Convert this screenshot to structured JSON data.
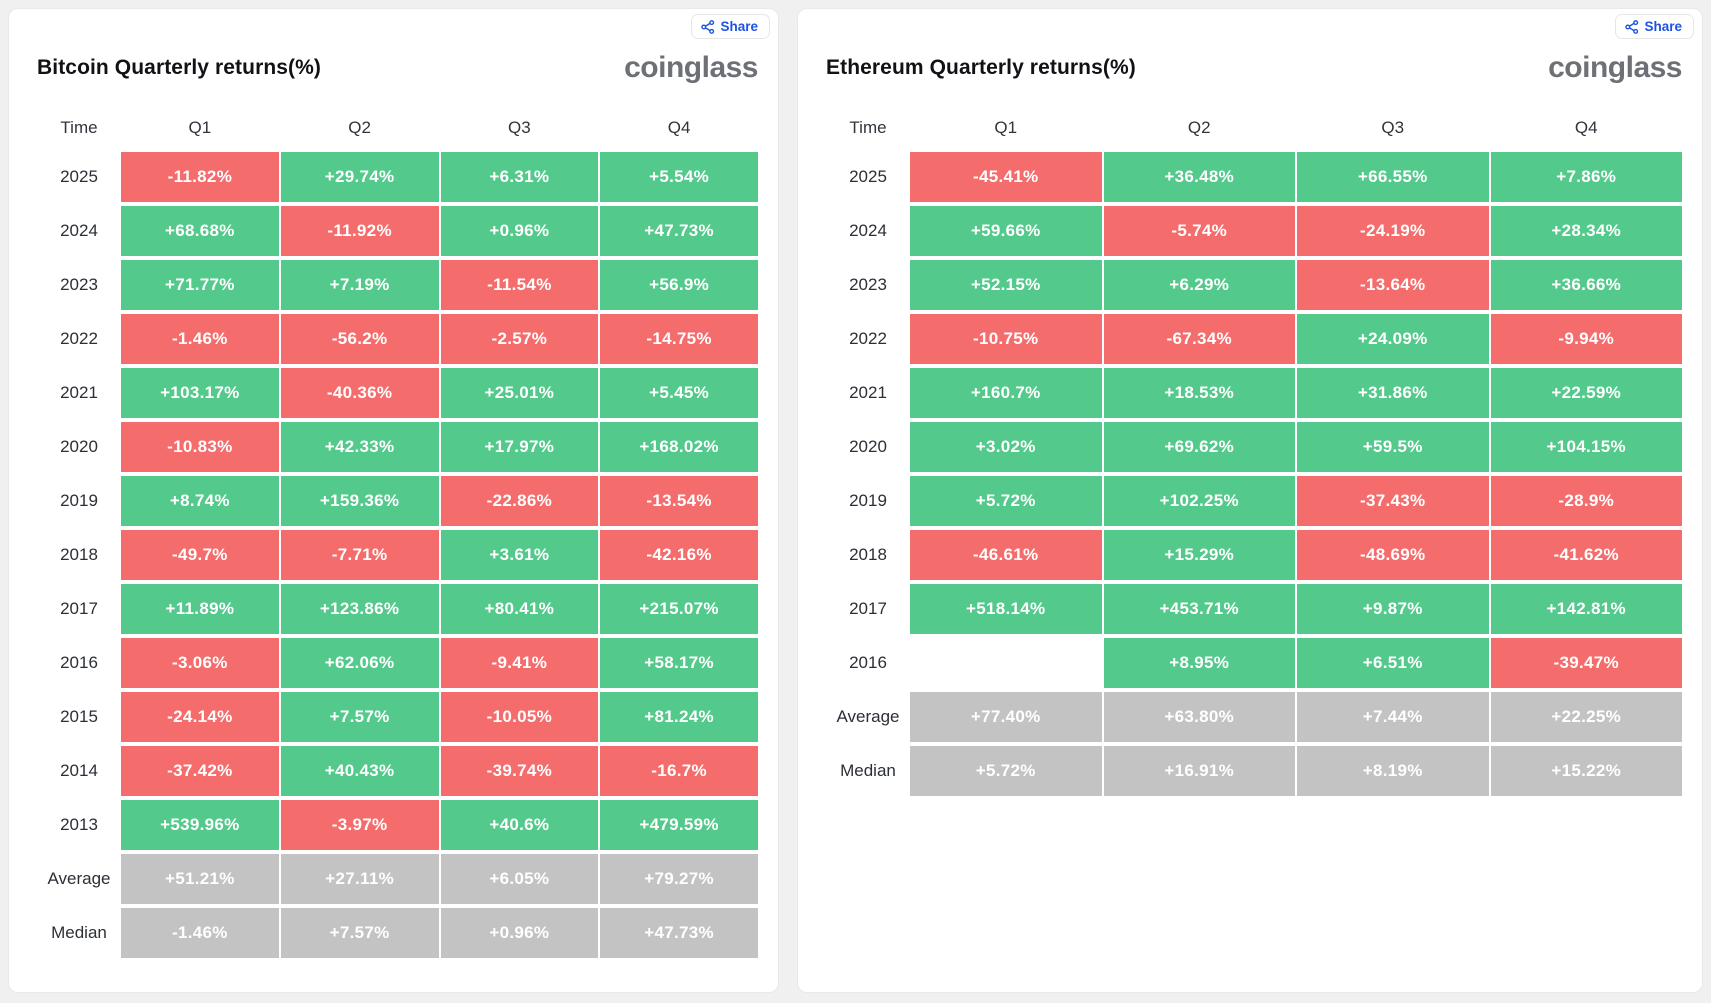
{
  "colors": {
    "positive": "#54c98c",
    "negative": "#f56c6c",
    "summary": "#c3c3c3",
    "share_blue": "#1d53e5",
    "logo_gray": "#6d7177",
    "page_background": "#f0f0f1"
  },
  "panels": [
    {
      "share_label": "Share",
      "logo_text": "coinglass"
    },
    {
      "share_label": "Share",
      "logo_text": "coinglass"
    }
  ],
  "chart_data": [
    {
      "type": "table",
      "title": "Bitcoin Quarterly returns(%)",
      "columns": [
        "Time",
        "Q1",
        "Q2",
        "Q3",
        "Q4"
      ],
      "rows": [
        {
          "label": "2025",
          "values": [
            "-11.82%",
            "+29.74%",
            "+6.31%",
            "+5.54%"
          ]
        },
        {
          "label": "2024",
          "values": [
            "+68.68%",
            "-11.92%",
            "+0.96%",
            "+47.73%"
          ]
        },
        {
          "label": "2023",
          "values": [
            "+71.77%",
            "+7.19%",
            "-11.54%",
            "+56.9%"
          ]
        },
        {
          "label": "2022",
          "values": [
            "-1.46%",
            "-56.2%",
            "-2.57%",
            "-14.75%"
          ]
        },
        {
          "label": "2021",
          "values": [
            "+103.17%",
            "-40.36%",
            "+25.01%",
            "+5.45%"
          ]
        },
        {
          "label": "2020",
          "values": [
            "-10.83%",
            "+42.33%",
            "+17.97%",
            "+168.02%"
          ]
        },
        {
          "label": "2019",
          "values": [
            "+8.74%",
            "+159.36%",
            "-22.86%",
            "-13.54%"
          ]
        },
        {
          "label": "2018",
          "values": [
            "-49.7%",
            "-7.71%",
            "+3.61%",
            "-42.16%"
          ]
        },
        {
          "label": "2017",
          "values": [
            "+11.89%",
            "+123.86%",
            "+80.41%",
            "+215.07%"
          ]
        },
        {
          "label": "2016",
          "values": [
            "-3.06%",
            "+62.06%",
            "-9.41%",
            "+58.17%"
          ]
        },
        {
          "label": "2015",
          "values": [
            "-24.14%",
            "+7.57%",
            "-10.05%",
            "+81.24%"
          ]
        },
        {
          "label": "2014",
          "values": [
            "-37.42%",
            "+40.43%",
            "-39.74%",
            "-16.7%"
          ]
        },
        {
          "label": "2013",
          "values": [
            "+539.96%",
            "-3.97%",
            "+40.6%",
            "+479.59%"
          ]
        },
        {
          "label": "Average",
          "values": [
            "+51.21%",
            "+27.11%",
            "+6.05%",
            "+79.27%"
          ],
          "summary": true
        },
        {
          "label": "Median",
          "values": [
            "-1.46%",
            "+7.57%",
            "+0.96%",
            "+47.73%"
          ],
          "summary": true
        }
      ]
    },
    {
      "type": "table",
      "title": "Ethereum Quarterly returns(%)",
      "columns": [
        "Time",
        "Q1",
        "Q2",
        "Q3",
        "Q4"
      ],
      "rows": [
        {
          "label": "2025",
          "values": [
            "-45.41%",
            "+36.48%",
            "+66.55%",
            "+7.86%"
          ]
        },
        {
          "label": "2024",
          "values": [
            "+59.66%",
            "-5.74%",
            "-24.19%",
            "+28.34%"
          ]
        },
        {
          "label": "2023",
          "values": [
            "+52.15%",
            "+6.29%",
            "-13.64%",
            "+36.66%"
          ]
        },
        {
          "label": "2022",
          "values": [
            "-10.75%",
            "-67.34%",
            "+24.09%",
            "-9.94%"
          ]
        },
        {
          "label": "2021",
          "values": [
            "+160.7%",
            "+18.53%",
            "+31.86%",
            "+22.59%"
          ]
        },
        {
          "label": "2020",
          "values": [
            "+3.02%",
            "+69.62%",
            "+59.5%",
            "+104.15%"
          ]
        },
        {
          "label": "2019",
          "values": [
            "+5.72%",
            "+102.25%",
            "-37.43%",
            "-28.9%"
          ]
        },
        {
          "label": "2018",
          "values": [
            "-46.61%",
            "+15.29%",
            "-48.69%",
            "-41.62%"
          ]
        },
        {
          "label": "2017",
          "values": [
            "+518.14%",
            "+453.71%",
            "+9.87%",
            "+142.81%"
          ]
        },
        {
          "label": "2016",
          "values": [
            "",
            "+8.95%",
            "+6.51%",
            "-39.47%"
          ]
        },
        {
          "label": "Average",
          "values": [
            "+77.40%",
            "+63.80%",
            "+7.44%",
            "+22.25%"
          ],
          "summary": true
        },
        {
          "label": "Median",
          "values": [
            "+5.72%",
            "+16.91%",
            "+8.19%",
            "+15.22%"
          ],
          "summary": true
        }
      ]
    }
  ]
}
